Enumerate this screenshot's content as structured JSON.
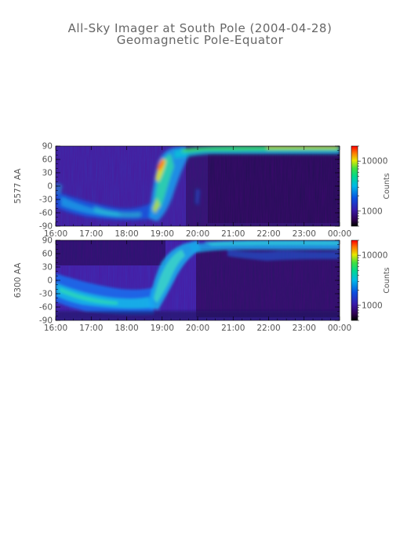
{
  "title": "All-Sky Imager at South Pole (2004-04-28)",
  "subtitle": "Geomagnetic Pole-Equator",
  "chart_data": [
    {
      "type": "heatmap",
      "ylabel": "5577 AA",
      "colorbar_label": "Counts",
      "colorbar_ticks": [
        "10000",
        "1000"
      ],
      "colorbar_tick_values": [
        10000,
        1000
      ],
      "colorbar_range": [
        500,
        20000
      ],
      "x_ticks": [
        "16:00",
        "17:00",
        "18:00",
        "19:00",
        "20:00",
        "21:00",
        "22:00",
        "23:00",
        "00:00"
      ],
      "y_ticks": [
        "90",
        "60",
        "30",
        "0",
        "-30",
        "-60",
        "-90"
      ],
      "ylim": [
        -90,
        90
      ],
      "colormap": "rainbow"
    },
    {
      "type": "heatmap",
      "ylabel": "6300 AA",
      "colorbar_label": "Counts",
      "colorbar_ticks": [
        "10000",
        "1000"
      ],
      "colorbar_tick_values": [
        10000,
        1000
      ],
      "colorbar_range": [
        500,
        20000
      ],
      "x_ticks": [
        "16:00",
        "17:00",
        "18:00",
        "19:00",
        "20:00",
        "21:00",
        "22:00",
        "23:00",
        "00:00"
      ],
      "y_ticks": [
        "90",
        "60",
        "30",
        "0",
        "-30",
        "-60",
        "-90"
      ],
      "ylim": [
        -90,
        90
      ],
      "colormap": "rainbow"
    }
  ]
}
